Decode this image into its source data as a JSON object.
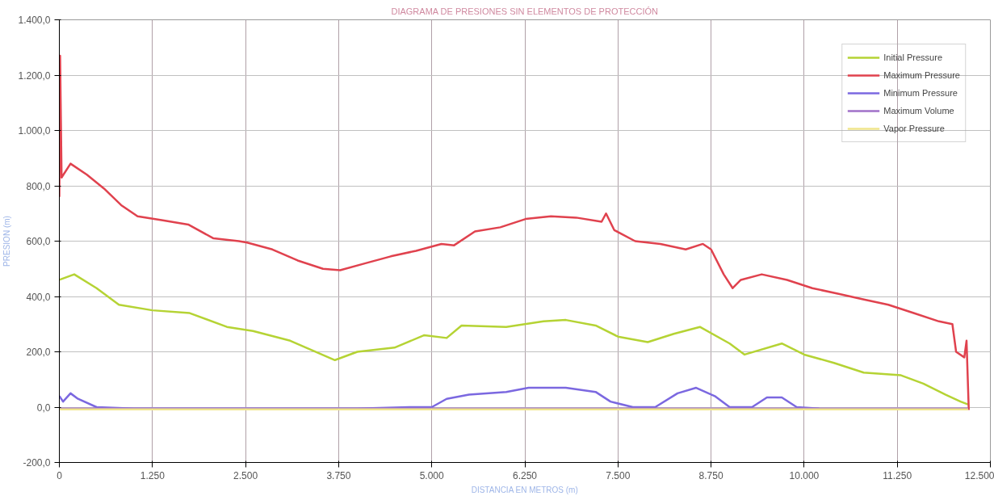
{
  "chart_data": {
    "type": "line",
    "title": "DIAGRAMA DE PRESIONES SIN ELEMENTOS DE PROTECCIÓN",
    "xlabel": "DISTANCIA EN METROS (m)",
    "ylabel": "PRESION (m)",
    "xlim": [
      0,
      12500
    ],
    "ylim": [
      -200,
      1400
    ],
    "xticks": [
      0,
      {
        "value": 1250,
        "label": "1.250"
      },
      {
        "value": 2500,
        "label": "2.500"
      },
      {
        "value": 3750,
        "label": "3.750"
      },
      {
        "value": 5000,
        "label": "5.000"
      },
      {
        "value": 6250,
        "label": "6.250"
      },
      {
        "value": 7500,
        "label": "7.500"
      },
      {
        "value": 8750,
        "label": "8.750"
      },
      {
        "value": 10000,
        "label": "10.000"
      },
      {
        "value": 11250,
        "label": "11.250"
      },
      {
        "value": 12500,
        "label": "12.500"
      }
    ],
    "yticks": [
      {
        "value": -200,
        "label": "-200,0"
      },
      {
        "value": 0,
        "label": "0,0"
      },
      {
        "value": 200,
        "label": "200,0"
      },
      {
        "value": 400,
        "label": "400,0"
      },
      {
        "value": 600,
        "label": "600,0"
      },
      {
        "value": 800,
        "label": "800,0"
      },
      {
        "value": 1000,
        "label": "1.000,0"
      },
      {
        "value": 1200,
        "label": "1.200,0"
      },
      {
        "value": 1400,
        "label": "1.400,0"
      }
    ],
    "grid": true,
    "legend": "top right",
    "line_style": "solid",
    "marker": "none",
    "series": [
      {
        "name": "Initial Pressure",
        "color": "#b5d334",
        "x": [
          0,
          200,
          500,
          800,
          1250,
          1750,
          2250,
          2600,
          3100,
          3700,
          4000,
          4500,
          4900,
          5200,
          5400,
          6000,
          6500,
          6800,
          7200,
          7500,
          7900,
          8250,
          8600,
          9000,
          9200,
          9700,
          10000,
          10400,
          10800,
          11300,
          11600,
          11900,
          12100,
          12200
        ],
        "values": [
          460,
          480,
          430,
          370,
          350,
          340,
          290,
          275,
          240,
          170,
          200,
          215,
          260,
          250,
          295,
          290,
          310,
          315,
          295,
          255,
          235,
          265,
          290,
          230,
          190,
          230,
          190,
          160,
          125,
          115,
          85,
          45,
          20,
          10
        ]
      },
      {
        "name": "Maximum Pressure",
        "color": "#e0424e",
        "x": [
          0,
          10,
          30,
          150,
          370,
          600,
          830,
          1050,
          1390,
          1730,
          2070,
          2410,
          2520,
          2860,
          3200,
          3540,
          3770,
          4110,
          4450,
          4790,
          5130,
          5300,
          5580,
          5920,
          6260,
          6600,
          6940,
          7280,
          7340,
          7450,
          7730,
          8070,
          8410,
          8640,
          8750,
          8920,
          9040,
          9150,
          9430,
          9770,
          10110,
          10450,
          10790,
          11130,
          11470,
          11810,
          11990,
          12040,
          12150,
          12180,
          12210
        ],
        "values": [
          760,
          1270,
          830,
          880,
          840,
          790,
          730,
          690,
          675,
          660,
          610,
          600,
          595,
          570,
          530,
          500,
          495,
          520,
          545,
          565,
          590,
          585,
          635,
          650,
          680,
          690,
          685,
          670,
          700,
          640,
          600,
          590,
          570,
          590,
          570,
          480,
          430,
          460,
          480,
          460,
          430,
          410,
          390,
          370,
          340,
          310,
          300,
          200,
          180,
          240,
          -10
        ]
      },
      {
        "name": "Minimum Pressure",
        "color": "#7b68e0",
        "x": [
          0,
          50,
          150,
          250,
          500,
          1000,
          2000,
          3000,
          4000,
          4700,
          5000,
          5200,
          5500,
          6000,
          6300,
          6800,
          7200,
          7400,
          7700,
          8000,
          8300,
          8550,
          8800,
          9000,
          9300,
          9500,
          9700,
          9900,
          10200
        ],
        "values": [
          40,
          20,
          50,
          30,
          0,
          -5,
          -5,
          -5,
          -5,
          0,
          0,
          30,
          45,
          55,
          70,
          70,
          55,
          20,
          0,
          0,
          50,
          70,
          40,
          0,
          0,
          35,
          35,
          0,
          -5
        ]
      },
      {
        "name": "Maximum Volume",
        "color": "#a070c8",
        "x": [
          0,
          2000,
          4000,
          6000,
          8000,
          10000,
          12200
        ],
        "values": [
          -5,
          -5,
          -5,
          -5,
          -5,
          -5,
          -5
        ]
      },
      {
        "name": "Vapor Pressure",
        "color": "#f0e68c",
        "x": [
          0,
          2000,
          4000,
          6000,
          8000,
          10000,
          12200
        ],
        "values": [
          -8,
          -8,
          -8,
          -8,
          -8,
          -8,
          -8
        ]
      }
    ]
  }
}
